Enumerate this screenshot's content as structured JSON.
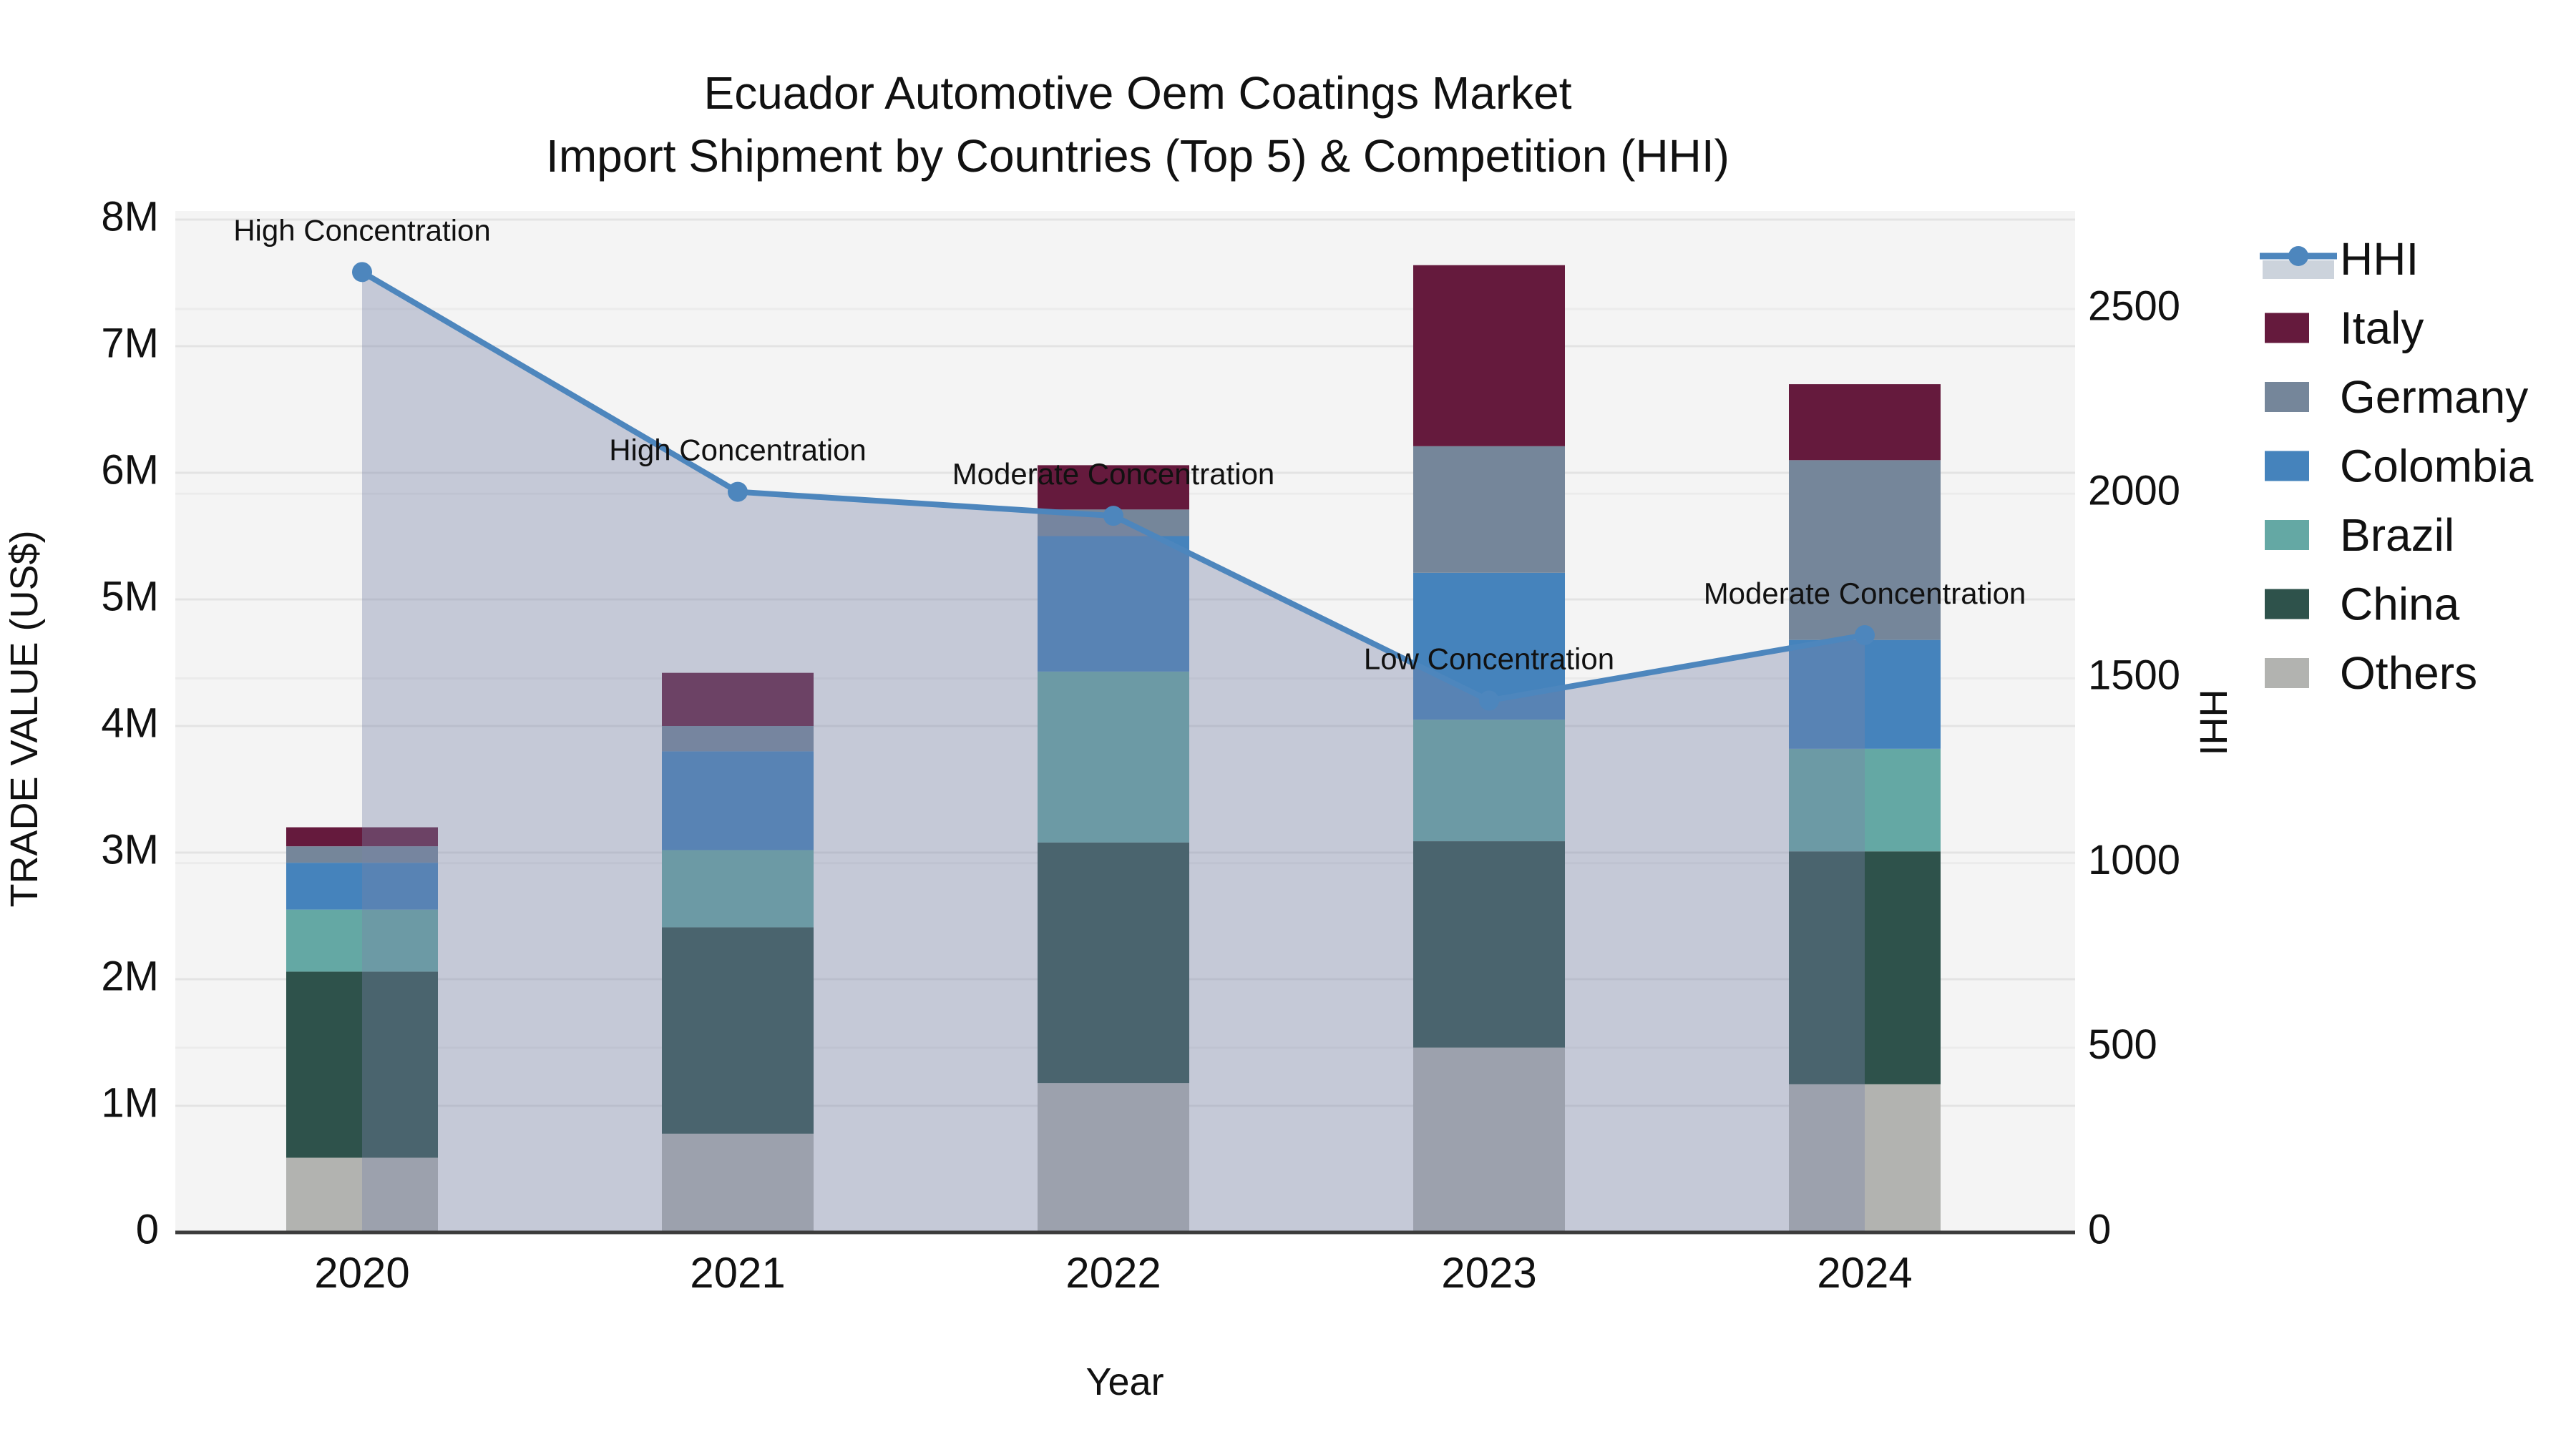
{
  "title": {
    "line1": "Ecuador Automotive Oem Coatings Market",
    "line2": "Import Shipment by Countries (Top 5) & Competition (HHI)"
  },
  "axes": {
    "left_label": "TRADE VALUE (US$)",
    "right_label": "HHI",
    "x_label": "Year",
    "left_ticks": [
      {
        "label": "0",
        "value": 0
      },
      {
        "label": "1M",
        "value": 1000000
      },
      {
        "label": "2M",
        "value": 2000000
      },
      {
        "label": "3M",
        "value": 3000000
      },
      {
        "label": "4M",
        "value": 4000000
      },
      {
        "label": "5M",
        "value": 5000000
      },
      {
        "label": "6M",
        "value": 6000000
      },
      {
        "label": "7M",
        "value": 7000000
      },
      {
        "label": "8M",
        "value": 8000000
      }
    ],
    "right_ticks": [
      {
        "label": "0",
        "value": 0
      },
      {
        "label": "500",
        "value": 500
      },
      {
        "label": "1000",
        "value": 1000
      },
      {
        "label": "1500",
        "value": 1500
      },
      {
        "label": "2000",
        "value": 2000
      },
      {
        "label": "2500",
        "value": 2500
      }
    ]
  },
  "colors": {
    "hhi_line": "#4d86bd",
    "area_fill": "#7a84a8",
    "area_opacity": 0.38,
    "plot_bg": "#f4f4f4",
    "grid_major": "#e3e3e3",
    "grid_minor": "#ebebeb",
    "axis_line": "#3c3c3c",
    "legend_area_patch": "#ccd3dc",
    "series": {
      "Italy": "#651a3d",
      "Germany": "#75869a",
      "Colombia": "#4583bc",
      "Brazil": "#64a8a4",
      "China": "#2e524b",
      "Others": "#b2b3b0"
    }
  },
  "legend": {
    "entries": [
      "HHI",
      "Italy",
      "Germany",
      "Colombia",
      "Brazil",
      "China",
      "Others"
    ]
  },
  "chart_data": {
    "type": "bar",
    "subtype": "stacked-bars-with-line",
    "categories": [
      "2020",
      "2021",
      "2022",
      "2023",
      "2024"
    ],
    "stack_order_bottom_to_top": [
      "Others",
      "China",
      "Brazil",
      "Colombia",
      "Germany",
      "Italy"
    ],
    "series": [
      {
        "name": "Others",
        "values": [
          590000,
          780000,
          1180000,
          1460000,
          1170000
        ]
      },
      {
        "name": "China",
        "values": [
          1470000,
          1630000,
          1900000,
          1630000,
          1840000
        ]
      },
      {
        "name": "Brazil",
        "values": [
          490000,
          610000,
          1350000,
          960000,
          810000
        ]
      },
      {
        "name": "Colombia",
        "values": [
          370000,
          780000,
          1070000,
          1160000,
          860000
        ]
      },
      {
        "name": "Germany",
        "values": [
          130000,
          200000,
          210000,
          1000000,
          1420000
        ]
      },
      {
        "name": "Italy",
        "values": [
          150000,
          420000,
          350000,
          1430000,
          600000
        ]
      }
    ],
    "bar_totals": [
      3200000,
      4420000,
      6060000,
      7640000,
      6700000
    ],
    "line_series": {
      "name": "HHI",
      "values": [
        2600,
        2005,
        1940,
        1440,
        1617
      ],
      "axis": "right"
    },
    "annotations": [
      {
        "x": "2020",
        "text": "High Concentration"
      },
      {
        "x": "2021",
        "text": "High Concentration"
      },
      {
        "x": "2022",
        "text": "Moderate Concentration"
      },
      {
        "x": "2023",
        "text": "Low Concentration"
      },
      {
        "x": "2024",
        "text": "Moderate Concentration"
      }
    ],
    "title": "Ecuador Automotive Oem Coatings Market Import Shipment by Countries (Top 5) & Competition (HHI)",
    "xlabel": "Year",
    "ylabel_left": "TRADE VALUE (US$)",
    "ylabel_right": "HHI",
    "ylim_left": [
      0,
      8000000
    ],
    "ylim_right": [
      0,
      2765
    ],
    "grid": true,
    "legend_position": "right"
  }
}
